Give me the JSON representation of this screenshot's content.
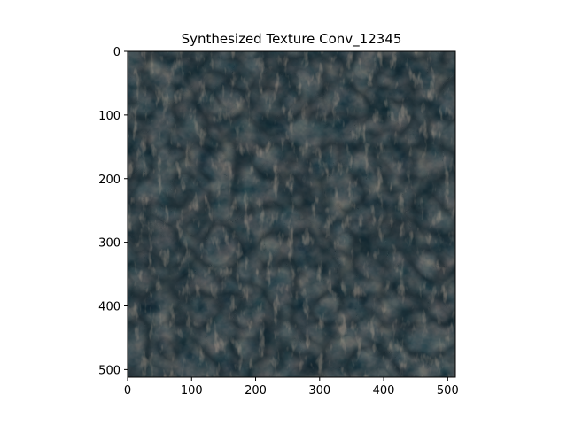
{
  "chart_data": {
    "type": "heatmap",
    "title": "Synthesized Texture Conv_12345",
    "xlabel": "",
    "ylabel": "",
    "xlim": [
      0,
      512
    ],
    "ylim": [
      512,
      0
    ],
    "x_ticks": [
      0,
      100,
      200,
      300,
      400,
      500
    ],
    "y_ticks": [
      0,
      100,
      200,
      300,
      400,
      500
    ],
    "grid": false,
    "legend": "none",
    "image": {
      "width": 512,
      "height": 512,
      "content": "synthesized texture",
      "palette": [
        "#0e1c24",
        "#1f323b",
        "#33474f",
        "#4c5e63",
        "#6a7574",
        "#8e7e70",
        "#a8806a",
        "#b7a796"
      ]
    }
  }
}
